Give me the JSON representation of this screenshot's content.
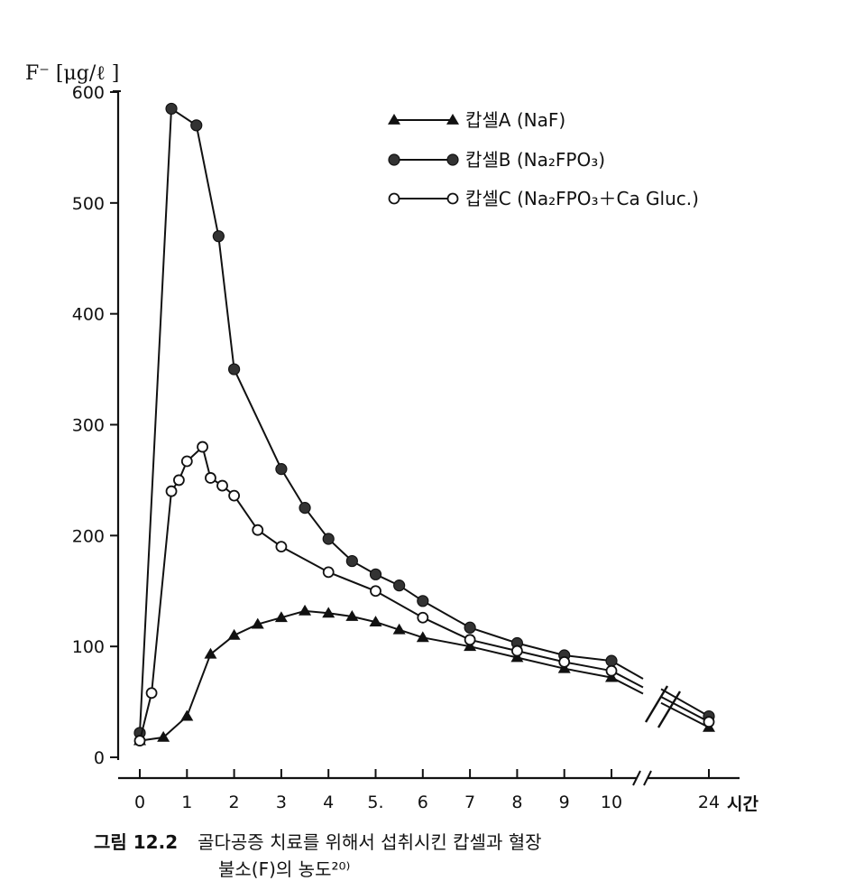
{
  "chart_data": {
    "type": "line",
    "ylabel": "F⁻ [μg/ℓ ]",
    "xlabel": "시간",
    "xlim": [
      0,
      24
    ],
    "ylim": [
      0,
      600
    ],
    "y_ticks": [
      0,
      100,
      200,
      300,
      400,
      500,
      600
    ],
    "x_ticks": [
      0,
      1,
      2,
      3,
      4,
      5,
      6,
      7,
      8,
      9,
      10,
      24
    ],
    "x_tick_labels": [
      "0",
      "1",
      "2",
      "3",
      "4",
      "5.",
      "6",
      "7",
      "8",
      "9",
      "10",
      "24"
    ],
    "x_axis_break": "between 10 and 24",
    "grid": false,
    "legend_position": "top-right",
    "series": [
      {
        "name": "캅셀A (NaF)",
        "marker": "filled-triangle",
        "x": [
          0,
          0.5,
          1,
          1.5,
          2,
          2.5,
          3,
          3.5,
          4,
          4.5,
          5,
          5.5,
          6,
          7,
          8,
          9,
          10,
          24
        ],
        "y": [
          15,
          18,
          37,
          93,
          110,
          120,
          126,
          132,
          130,
          127,
          122,
          115,
          108,
          100,
          90,
          80,
          72,
          27
        ]
      },
      {
        "name": "캅셀B (Na₂FPO₃)",
        "marker": "filled-circle",
        "x": [
          0,
          0.67,
          1.2,
          1.67,
          2,
          3,
          3.5,
          4,
          4.5,
          5,
          5.5,
          6,
          7,
          8,
          9,
          10,
          24
        ],
        "y": [
          22,
          585,
          570,
          470,
          350,
          260,
          225,
          197,
          177,
          165,
          155,
          141,
          117,
          103,
          92,
          87,
          37
        ]
      },
      {
        "name": "캅셀C (Na₂FPO₃＋Ca Gluc.)",
        "marker": "open-circle",
        "x": [
          0,
          0.25,
          0.67,
          0.83,
          1,
          1.33,
          1.5,
          1.75,
          2,
          2.5,
          3,
          4,
          5,
          6,
          7,
          8,
          9,
          10,
          24
        ],
        "y": [
          15,
          58,
          240,
          250,
          267,
          280,
          252,
          245,
          236,
          205,
          190,
          167,
          150,
          126,
          106,
          96,
          86,
          78,
          32
        ]
      }
    ]
  },
  "caption": {
    "figure_number": "그림 12.2",
    "line1": "골다공증 치료를 위해서 섭취시킨 캅셀과 혈장",
    "line2": "불소(F)의 농도²⁰⁾"
  }
}
